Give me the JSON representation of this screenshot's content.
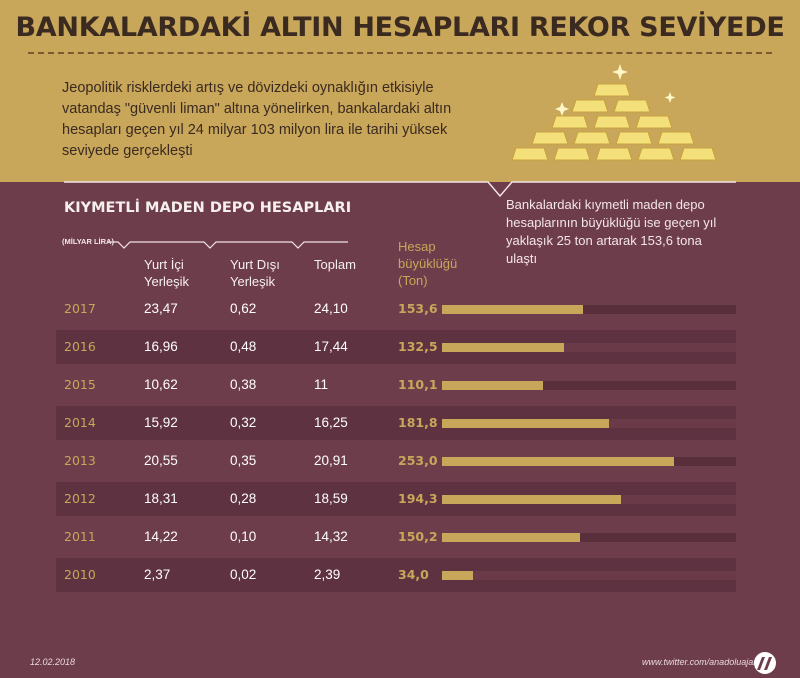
{
  "title": "BANKALARDAKİ ALTIN HESAPLARI REKOR SEVİYEDE",
  "intro_lines": [
    "Jeopolitik risklerdeki artış ve dövizdeki oynaklığın etkisiyle",
    "vatandaş \"güvenli liman\" altına yönelirken, bankalardaki altın",
    "hesapları geçen yıl 24 milyar 103 milyon lira ile tarihi yüksek",
    "seviyede gerçekleşti"
  ],
  "callout_lines": [
    "Bankalardaki kıymetli maden depo",
    "hesaplarının büyüklüğü ise geçen yıl",
    "yaklaşık 25 ton artarak 153,6 tona",
    "ulaştı"
  ],
  "section_title": "KIYMETLİ MADEN DEPO HESAPLARI",
  "unit_label": "(MİLYAR LİRA)",
  "footer": {
    "date": "12.02.2018",
    "credit": "www.twitter.com/anadoluajansi"
  },
  "colors": {
    "gold": "#c8a65a",
    "background": "#6e3d4b",
    "header_band": "#c8a65a"
  },
  "icons": [
    "gold-bars-pyramid-icon",
    "sparkle-icon",
    "anadolu-agency-logo-icon"
  ],
  "chart_data": {
    "type": "table",
    "columns": [
      {
        "lines": [
          "Yurt İçi",
          "Yerleşik"
        ]
      },
      {
        "lines": [
          "Yurt Dışı",
          "Yerleşik"
        ]
      },
      {
        "lines": [
          "",
          "Toplam"
        ]
      },
      {
        "lines": [
          "Hesap",
          "büyüklüğü",
          "(Ton)"
        ]
      }
    ],
    "rows": [
      {
        "year": "2017",
        "yurt_ici": "23,47",
        "yurt_disi": "0,62",
        "toplam": "24,10",
        "ton": "153,6",
        "ton_value": 153.6
      },
      {
        "year": "2016",
        "yurt_ici": "16,96",
        "yurt_disi": "0,48",
        "toplam": "17,44",
        "ton": "132,5",
        "ton_value": 132.5
      },
      {
        "year": "2015",
        "yurt_ici": "10,62",
        "yurt_disi": "0,38",
        "toplam": "11",
        "ton": "110,1",
        "ton_value": 110.1
      },
      {
        "year": "2014",
        "yurt_ici": "15,92",
        "yurt_disi": "0,32",
        "toplam": "16,25",
        "ton": "181,8",
        "ton_value": 181.8
      },
      {
        "year": "2013",
        "yurt_ici": "20,55",
        "yurt_disi": "0,35",
        "toplam": "20,91",
        "ton": "253,0",
        "ton_value": 253.0
      },
      {
        "year": "2012",
        "yurt_ici": "18,31",
        "yurt_disi": "0,28",
        "toplam": "18,59",
        "ton": "194,3",
        "ton_value": 194.3
      },
      {
        "year": "2011",
        "yurt_ici": "14,22",
        "yurt_disi": "0,10",
        "toplam": "14,32",
        "ton": "150,2",
        "ton_value": 150.2
      },
      {
        "year": "2010",
        "yurt_ici": "2,37",
        "yurt_disi": "0,02",
        "toplam": "2,39",
        "ton": "34,0",
        "ton_value": 34.0
      }
    ],
    "bar_series": "ton_value",
    "bar_scale_max": 320
  }
}
